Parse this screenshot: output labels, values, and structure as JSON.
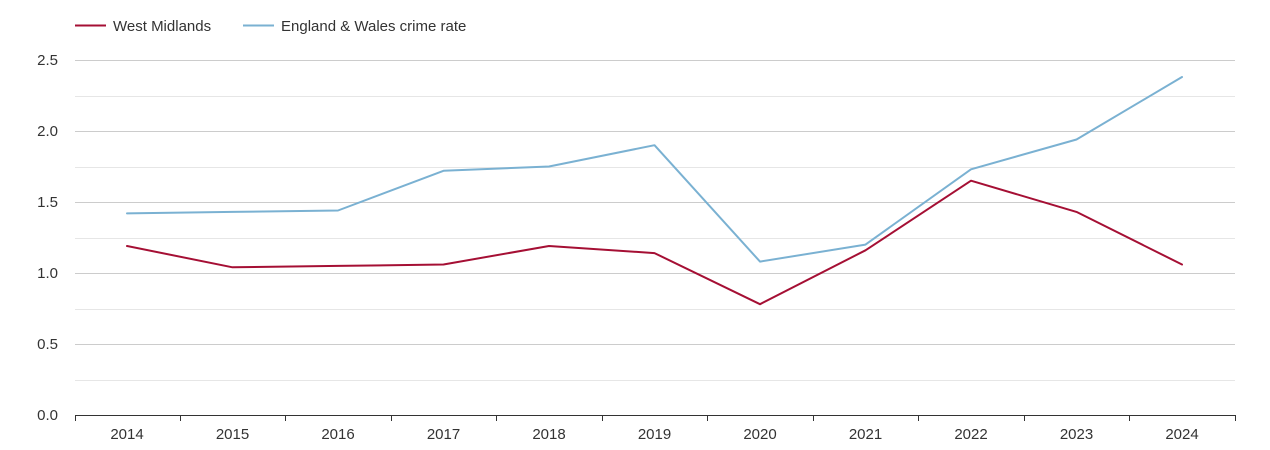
{
  "colors": {
    "west_midlands": "#a50f34",
    "england_wales": "#7ab1d2"
  },
  "chart_data": {
    "type": "line",
    "title": "",
    "xlabel": "",
    "ylabel": "",
    "categories": [
      "2014",
      "2015",
      "2016",
      "2017",
      "2018",
      "2019",
      "2020",
      "2021",
      "2022",
      "2023",
      "2024"
    ],
    "ylim": [
      0,
      2.5
    ],
    "yticks": [
      "0.0",
      "0.5",
      "1.0",
      "1.5",
      "2.0",
      "2.5"
    ],
    "grid": true,
    "legend_position": "top-left",
    "series": [
      {
        "name": "West Midlands",
        "color": "#a50f34",
        "values": [
          1.19,
          1.04,
          1.05,
          1.06,
          1.19,
          1.14,
          0.78,
          1.16,
          1.65,
          1.43,
          1.06
        ]
      },
      {
        "name": "England & Wales crime rate",
        "color": "#7ab1d2",
        "values": [
          1.42,
          1.43,
          1.44,
          1.72,
          1.75,
          1.9,
          1.08,
          1.2,
          1.73,
          1.94,
          2.38
        ]
      }
    ]
  }
}
